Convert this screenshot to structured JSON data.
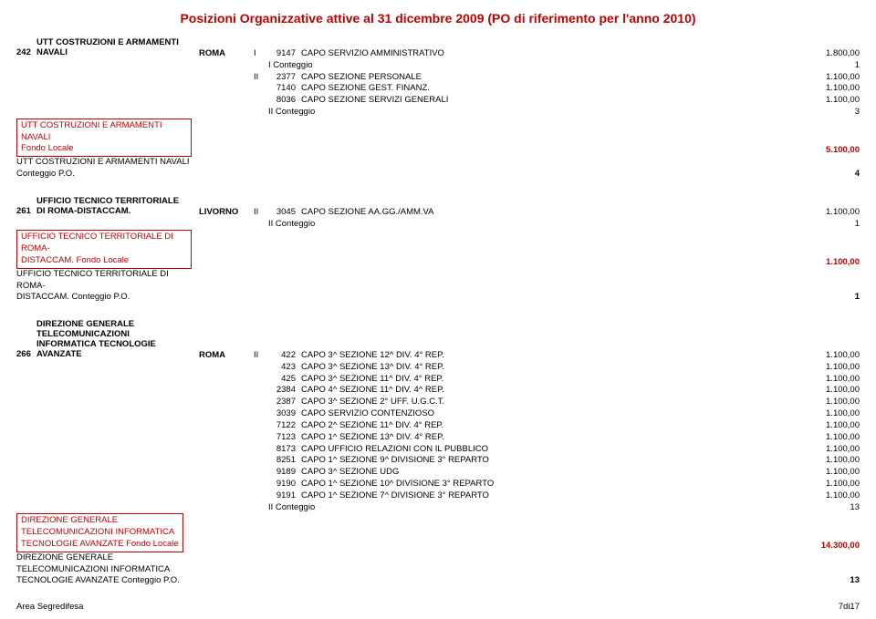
{
  "title": "Posizioni Organizzative attive al 31 dicembre 2009 (PO di riferimento per l'anno 2010)",
  "footer_left": "Area Segredifesa",
  "footer_right": "7di17",
  "sec1": {
    "id": "242",
    "name1": "UTT COSTRUZIONI E ARMAMENTI",
    "name2": "NAVALI",
    "city": "ROMA",
    "rows": [
      {
        "cat": "I",
        "code": "9147",
        "desc": "CAPO SERVIZIO AMMINISTRATIVO",
        "val": "1.800,00"
      }
    ],
    "count1": "I Conteggio",
    "count1v": "1",
    "rows2": [
      {
        "cat": "II",
        "code": "2377",
        "desc": "CAPO SEZIONE PERSONALE",
        "val": "1.100,00"
      },
      {
        "cat": "",
        "code": "7140",
        "desc": "CAPO SEZIONE GEST. FINANZ.",
        "val": "1.100,00"
      },
      {
        "cat": "",
        "code": "8036",
        "desc": "CAPO SEZIONE SERVIZI GENERALI",
        "val": "1.100,00"
      }
    ],
    "count2": "II Conteggio",
    "count2v": "3",
    "fondo1": "UTT COSTRUZIONI E ARMAMENTI NAVALI",
    "fondo2": "Fondo Locale",
    "fondov": "5.100,00",
    "po1": "UTT COSTRUZIONI E ARMAMENTI NAVALI",
    "po2": "Conteggio P.O.",
    "pov": "4"
  },
  "sec2": {
    "id": "261",
    "name1": "UFFICIO TECNICO TERRITORIALE",
    "name2": "DI ROMA-DISTACCAM.",
    "city": "LIVORNO",
    "rows": [
      {
        "cat": "II",
        "code": "3045",
        "desc": "CAPO SEZIONE AA.GG./AMM.VA",
        "val": "1.100,00"
      }
    ],
    "count2": "II Conteggio",
    "count2v": "1",
    "fondo1": "UFFICIO TECNICO TERRITORIALE DI ROMA-",
    "fondo2": "DISTACCAM. Fondo Locale",
    "fondov": "1.100,00",
    "po1": "UFFICIO TECNICO TERRITORIALE DI ROMA-",
    "po2": "DISTACCAM. Conteggio P.O.",
    "pov": "1"
  },
  "sec3": {
    "id": "266",
    "name1": "DIREZIONE GENERALE",
    "name2": "TELECOMUNICAZIONI",
    "name3": "INFORMATICA TECNOLOGIE",
    "name4": "AVANZATE",
    "city": "ROMA",
    "rows": [
      {
        "cat": "II",
        "code": "422",
        "desc": "CAPO 3^ SEZIONE 12^ DIV. 4° REP.",
        "val": "1.100,00"
      },
      {
        "cat": "",
        "code": "423",
        "desc": "CAPO 3^ SEZIONE 13^ DIV. 4° REP.",
        "val": "1.100,00"
      },
      {
        "cat": "",
        "code": "425",
        "desc": "CAPO 3^ SEZIONE 11^ DIV. 4° REP.",
        "val": "1.100,00"
      },
      {
        "cat": "",
        "code": "2384",
        "desc": "CAPO 4^ SEZIONE 11^ DIV. 4^ REP.",
        "val": "1.100,00"
      },
      {
        "cat": "",
        "code": "2387",
        "desc": "CAPO 3^ SEZIONE 2° UFF. U.G.C.T.",
        "val": "1.100,00"
      },
      {
        "cat": "",
        "code": "3039",
        "desc": "CAPO SERVIZIO CONTENZIOSO",
        "val": "1.100,00"
      },
      {
        "cat": "",
        "code": "7122",
        "desc": "CAPO 2^ SEZIONE 11^ DIV. 4° REP.",
        "val": "1.100,00"
      },
      {
        "cat": "",
        "code": "7123",
        "desc": "CAPO 1^ SEZIONE 13^ DIV. 4° REP.",
        "val": "1.100,00"
      },
      {
        "cat": "",
        "code": "8173",
        "desc": "CAPO UFFICIO RELAZIONI CON IL PUBBLICO",
        "val": "1.100,00"
      },
      {
        "cat": "",
        "code": "8251",
        "desc": "CAPO 1^ SEZIONE 9^ DIVISIONE 3° REPARTO",
        "val": "1.100,00"
      },
      {
        "cat": "",
        "code": "9189",
        "desc": "CAPO 3^ SEZIONE UDG",
        "val": "1.100,00"
      },
      {
        "cat": "",
        "code": "9190",
        "desc": "CAPO 1^ SEZIONE 10^ DIVISIONE 3° REPARTO",
        "val": "1.100,00"
      },
      {
        "cat": "",
        "code": "9191",
        "desc": "CAPO 1^ SEZIONE 7^ DIVISIONE 3° REPARTO",
        "val": "1.100,00"
      }
    ],
    "count2": "II Conteggio",
    "count2v": "13",
    "fondo1": "DIREZIONE GENERALE",
    "fondo2": "TELECOMUNICAZIONI INFORMATICA",
    "fondo3": "TECNOLOGIE AVANZATE Fondo Locale",
    "fondov": "14.300,00",
    "po1": "DIREZIONE GENERALE",
    "po2": "TELECOMUNICAZIONI INFORMATICA",
    "po3": "TECNOLOGIE AVANZATE Conteggio P.O.",
    "pov": "13"
  }
}
